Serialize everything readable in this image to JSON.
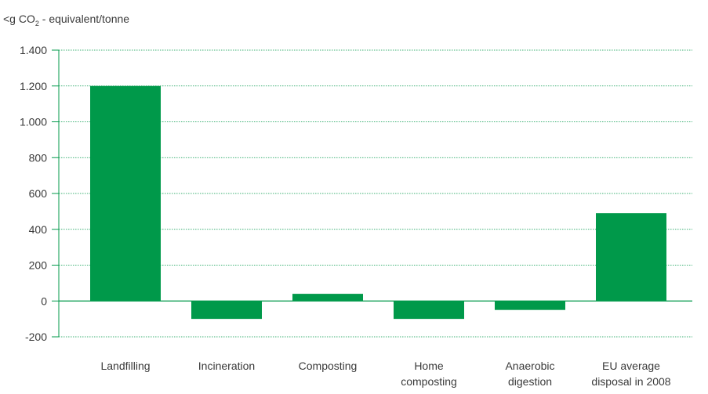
{
  "chart_data": {
    "type": "bar",
    "ylabel_parts": {
      "prefix": "<g CO",
      "subscript": "2",
      "suffix": " - equivalent/tonne"
    },
    "categories": [
      [
        "Landfilling"
      ],
      [
        "Incineration"
      ],
      [
        "Composting"
      ],
      [
        "Home",
        "composting"
      ],
      [
        "Anaerobic",
        "digestion"
      ],
      [
        "EU average",
        "disposal in 2008"
      ]
    ],
    "values": [
      1200,
      -100,
      40,
      -100,
      -50,
      490
    ],
    "ylim": [
      -200,
      1400
    ],
    "yticks": [
      1400,
      1200,
      1000,
      800,
      600,
      400,
      200,
      0,
      -200
    ],
    "ytick_labels": [
      "1.400",
      "1.200",
      "1.000",
      "800",
      "600",
      "400",
      "200",
      "0",
      "-200"
    ],
    "grid": true,
    "colors": {
      "bar": "#00994a",
      "axis": "#00994a",
      "grid": "#00994a",
      "text": "#3a3a3a"
    }
  }
}
